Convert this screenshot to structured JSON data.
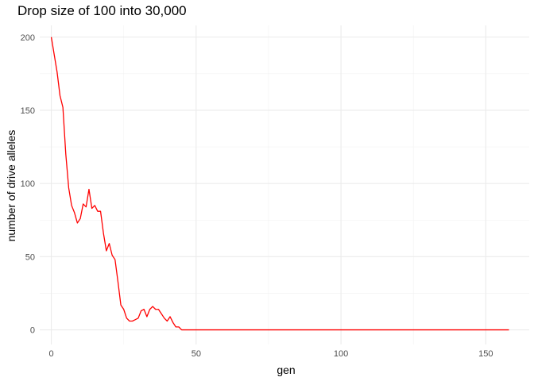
{
  "chart_data": {
    "type": "line",
    "title": "Drop size of 100 into 30,000",
    "xlabel": "gen",
    "ylabel": "number of drive alleles",
    "xlim": [
      -4,
      165
    ],
    "ylim": [
      -10,
      208
    ],
    "x_ticks": [
      0,
      50,
      100,
      150
    ],
    "y_ticks": [
      0,
      50,
      100,
      150,
      200
    ],
    "grid": true,
    "legend": "none",
    "line_color": "#ff0000",
    "series": [
      {
        "x": [
          0,
          1,
          2,
          3,
          4,
          5,
          6,
          7,
          8,
          9,
          10,
          11,
          12,
          13,
          14,
          15,
          16,
          17,
          18,
          19,
          20,
          21,
          22,
          23,
          24,
          25,
          26,
          27,
          28,
          29,
          30,
          31,
          32,
          33,
          34,
          35,
          36,
          37,
          38,
          39,
          40,
          41,
          42,
          43,
          44,
          45,
          46,
          158
        ],
        "values": [
          200,
          188,
          176,
          160,
          152,
          120,
          97,
          85,
          80,
          73,
          76,
          86,
          84,
          96,
          83,
          85,
          81,
          81,
          66,
          54,
          59,
          51,
          48,
          33,
          17,
          14,
          8,
          6,
          6,
          7,
          8,
          13,
          14,
          9,
          14,
          16,
          14,
          14,
          11,
          8,
          6,
          9,
          5,
          2,
          2,
          0,
          0,
          0
        ]
      }
    ]
  }
}
